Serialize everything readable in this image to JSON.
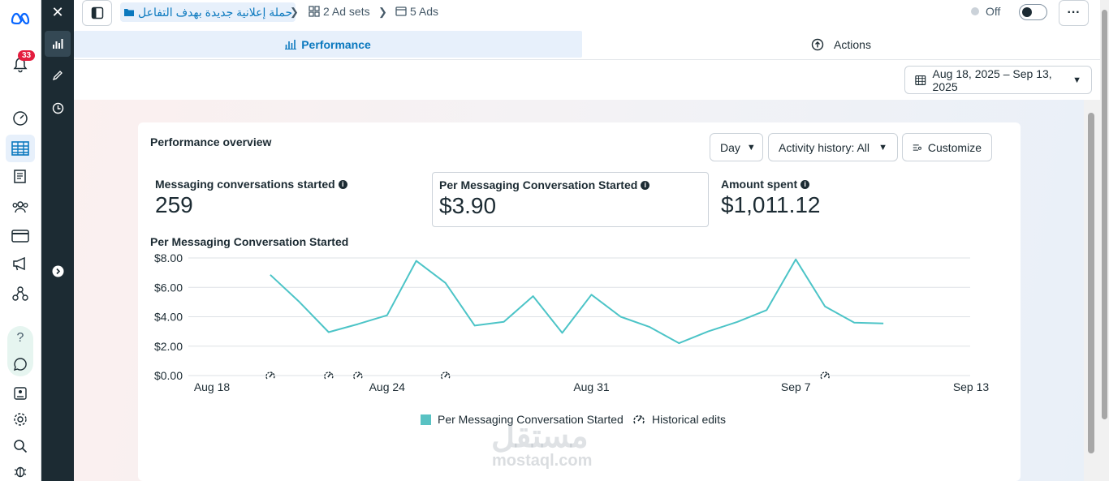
{
  "breadcrumb": {
    "campaign": "حملة إعلانية جديدة بهدف التفاعل",
    "adsets": "2 Ad sets",
    "ads": "5 Ads"
  },
  "status": {
    "label": "Off"
  },
  "notifications": {
    "count": "33"
  },
  "tabs": {
    "performance": "Performance",
    "actions": "Actions"
  },
  "date_range": "Aug 18, 2025 – Sep 13, 2025",
  "overview": {
    "title": "Performance overview",
    "day_label": "Day",
    "history_label": "Activity history: All",
    "customize_label": "Customize"
  },
  "metrics": [
    {
      "label": "Messaging conversations started",
      "value": "259"
    },
    {
      "label": "Per Messaging Conversation Started",
      "value": "$3.90"
    },
    {
      "label": "Amount spent",
      "value": "$1,011.12"
    }
  ],
  "chart_title": "Per Messaging Conversation Started",
  "legend": {
    "series": "Per Messaging Conversation Started",
    "edits": "Historical edits"
  },
  "watermark": {
    "arabic": "مستقل",
    "latin": "mostaql.com"
  },
  "chart_data": {
    "type": "line",
    "x_label_ticks": [
      "Aug 18",
      "Aug 24",
      "Aug 31",
      "Sep 7",
      "Sep 13"
    ],
    "y_ticks": [
      "$0.00",
      "$2.00",
      "$4.00",
      "$6.00",
      "$8.00"
    ],
    "ylim": [
      0,
      8
    ],
    "series": [
      {
        "name": "Per Messaging Conversation Started",
        "color": "#4cc4c7",
        "x": [
          "Aug 20",
          "Aug 21",
          "Aug 22",
          "Aug 23",
          "Aug 24",
          "Aug 25",
          "Aug 26",
          "Aug 27",
          "Aug 28",
          "Aug 29",
          "Aug 30",
          "Aug 31",
          "Sep 1",
          "Sep 2",
          "Sep 3",
          "Sep 4",
          "Sep 5",
          "Sep 6",
          "Sep 7",
          "Sep 8",
          "Sep 9",
          "Sep 10"
        ],
        "values": [
          6.85,
          5.0,
          2.95,
          3.5,
          4.1,
          7.8,
          6.3,
          3.4,
          3.65,
          5.4,
          2.9,
          5.5,
          4.0,
          3.3,
          2.2,
          3.0,
          3.65,
          4.45,
          7.9,
          4.7,
          3.6,
          3.55
        ]
      }
    ],
    "historical_edits": [
      "Aug 20",
      "Aug 22",
      "Aug 23",
      "Aug 26",
      "Sep 8"
    ],
    "grid": true
  }
}
